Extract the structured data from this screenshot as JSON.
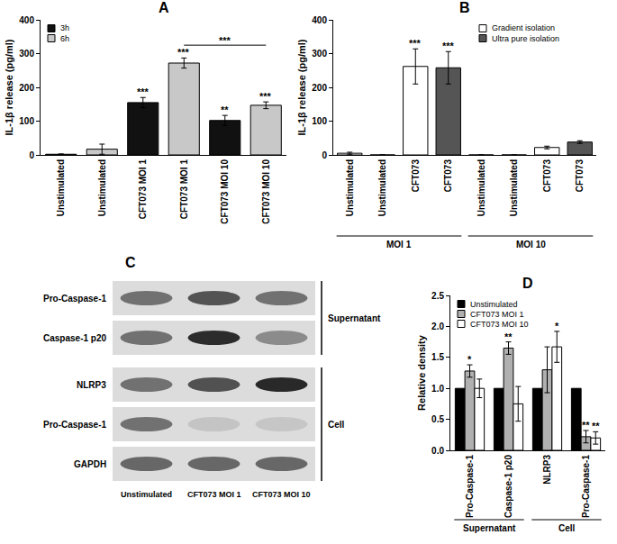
{
  "chart_data": [
    {
      "type": "bar",
      "title": "A",
      "ylabel": "IL-1β release (pg/ml)",
      "categories": [
        "Unstimulated",
        "Unstimulated",
        "CFT073 MOI 1",
        "CFT073 MOI 1",
        "CFT073 MOI 10",
        "CFT073 MOI 10"
      ],
      "series": [
        {
          "name": "3h",
          "color": "#111111",
          "values": [
            2,
            null,
            155,
            null,
            102,
            null
          ],
          "errors": [
            1,
            null,
            15,
            null,
            15,
            null
          ],
          "significance": [
            null,
            null,
            "***",
            null,
            "**",
            null
          ]
        },
        {
          "name": "6h",
          "color": "#c8c8c8",
          "values": [
            null,
            17,
            null,
            272,
            null,
            147
          ],
          "errors": [
            null,
            15,
            null,
            15,
            null,
            10
          ],
          "significance": [
            null,
            null,
            null,
            "***",
            null,
            "***"
          ]
        }
      ],
      "comparisons": [
        {
          "from": 3,
          "to": 5,
          "y": 325,
          "text": "***"
        }
      ],
      "ylim": [
        0,
        400
      ],
      "yticks": [
        0,
        100,
        200,
        300,
        400
      ],
      "legend": "upper left",
      "grid": false
    },
    {
      "type": "bar",
      "title": "B",
      "ylabel": "IL-1β release (pg/ml)",
      "categories": [
        "Unstimulated",
        "Unstimulated",
        "CFT073",
        "CFT073",
        "Unstimulated",
        "Unstimulated",
        "CFT073",
        "CFT073"
      ],
      "series": [
        {
          "name": "Gradient isolation",
          "color": "#ffffff",
          "values": [
            5,
            null,
            262,
            null,
            0,
            null,
            22,
            null
          ],
          "errors": [
            3,
            null,
            52,
            null,
            null,
            null,
            4,
            null
          ],
          "significance": [
            null,
            null,
            "***",
            null,
            null,
            null,
            null,
            null
          ]
        },
        {
          "name": "Ultra pure isolation",
          "color": "#555555",
          "values": [
            null,
            0,
            null,
            258,
            null,
            0,
            null,
            38
          ],
          "errors": [
            null,
            null,
            null,
            48,
            null,
            null,
            null,
            4
          ],
          "significance": [
            null,
            null,
            null,
            "***",
            null,
            null,
            null,
            null
          ]
        }
      ],
      "groups": [
        {
          "label": "MOI 1",
          "from": 0,
          "to": 3
        },
        {
          "label": "MOI 10",
          "from": 4,
          "to": 7
        }
      ],
      "ylim": [
        0,
        400
      ],
      "yticks": [
        0,
        100,
        200,
        300,
        400
      ],
      "legend": "upper right",
      "grid": false
    },
    {
      "type": "bar",
      "title": "D",
      "ylabel": "Relative density",
      "categories": [
        "Pro-Caspase-1",
        "Caspase-1 p20",
        "NLRP3",
        "Pro-Caspase-1"
      ],
      "series": [
        {
          "name": "Unstimulated",
          "color": "#000000",
          "values": [
            1,
            1,
            1,
            1
          ]
        },
        {
          "name": "CFT073 MOI 1",
          "color": "#b0b0b0",
          "values": [
            1.28,
            1.65,
            1.3,
            0.22
          ],
          "errors": [
            0.1,
            0.1,
            0.37,
            0.1
          ],
          "significance": [
            "*",
            "**",
            null,
            "**"
          ]
        },
        {
          "name": "CFT073 MOI 10",
          "color": "#ffffff",
          "values": [
            1.0,
            0.75,
            1.67,
            0.2
          ],
          "errors": [
            0.15,
            0.28,
            0.25,
            0.1
          ],
          "significance": [
            null,
            null,
            "*",
            "**"
          ]
        }
      ],
      "groups": [
        {
          "label": "Supernatant",
          "from": 0,
          "to": 1
        },
        {
          "label": "Cell",
          "from": 2,
          "to": 3
        }
      ],
      "ylim": [
        0,
        2.5
      ],
      "yticks": [
        {
          "value": 0,
          "label": "0.0"
        },
        {
          "value": 0.5,
          "label": "0.5"
        },
        {
          "value": 1,
          "label": "1.0"
        },
        {
          "value": 1.5,
          "label": "1.5"
        },
        {
          "value": 2,
          "label": "2.0"
        },
        {
          "value": 2.5,
          "label": "2.5"
        }
      ],
      "legend": "upper left",
      "grid": false
    }
  ],
  "blot": {
    "title": "C",
    "lanes": [
      "Unstimulated",
      "CFT073 MOI 1",
      "CFT073 MOI 10"
    ],
    "sections": [
      {
        "label": "Supernatant",
        "rows": [
          "Pro-Caspase-1",
          "Caspase-1 p20"
        ]
      },
      {
        "label": "Cell",
        "rows": [
          "NLRP3",
          "Pro-Caspase-1",
          "GAPDH"
        ]
      }
    ]
  }
}
